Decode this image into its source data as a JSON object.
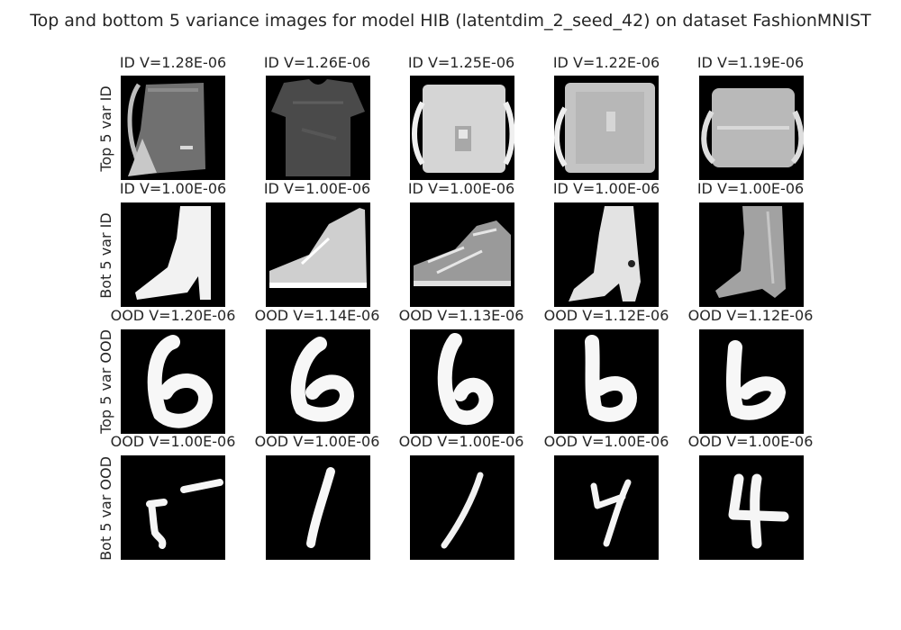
{
  "figure": {
    "title": "Top and bottom 5 variance images for model HIB (latentdim_2_seed_42) on dataset FashionMNIST"
  },
  "rows": [
    {
      "label": "Top 5 var ID",
      "cells": [
        {
          "title": "ID V=1.28E-06",
          "subject": "bag"
        },
        {
          "title": "ID V=1.26E-06",
          "subject": "t-shirt"
        },
        {
          "title": "ID V=1.25E-06",
          "subject": "bag"
        },
        {
          "title": "ID V=1.22E-06",
          "subject": "bag"
        },
        {
          "title": "ID V=1.19E-06",
          "subject": "bag"
        }
      ]
    },
    {
      "label": "Bot 5 var ID",
      "cells": [
        {
          "title": "ID V=1.00E-06",
          "subject": "ankle boot"
        },
        {
          "title": "ID V=1.00E-06",
          "subject": "sneaker"
        },
        {
          "title": "ID V=1.00E-06",
          "subject": "sneaker"
        },
        {
          "title": "ID V=1.00E-06",
          "subject": "ankle boot"
        },
        {
          "title": "ID V=1.00E-06",
          "subject": "ankle boot"
        }
      ]
    },
    {
      "label": "Top 5 var OOD",
      "cells": [
        {
          "title": "OOD V=1.20E-06",
          "subject": "digit 6"
        },
        {
          "title": "OOD V=1.14E-06",
          "subject": "digit 6"
        },
        {
          "title": "OOD V=1.13E-06",
          "subject": "digit 6"
        },
        {
          "title": "OOD V=1.12E-06",
          "subject": "digit 6"
        },
        {
          "title": "OOD V=1.12E-06",
          "subject": "digit 6"
        }
      ]
    },
    {
      "label": "Bot 5 var OOD",
      "cells": [
        {
          "title": "OOD V=1.00E-06",
          "subject": "digit 5"
        },
        {
          "title": "OOD V=1.00E-06",
          "subject": "digit 1"
        },
        {
          "title": "OOD V=1.00E-06",
          "subject": "digit 1"
        },
        {
          "title": "OOD V=1.00E-06",
          "subject": "digit 4"
        },
        {
          "title": "OOD V=1.00E-06",
          "subject": "digit 4"
        }
      ]
    }
  ]
}
